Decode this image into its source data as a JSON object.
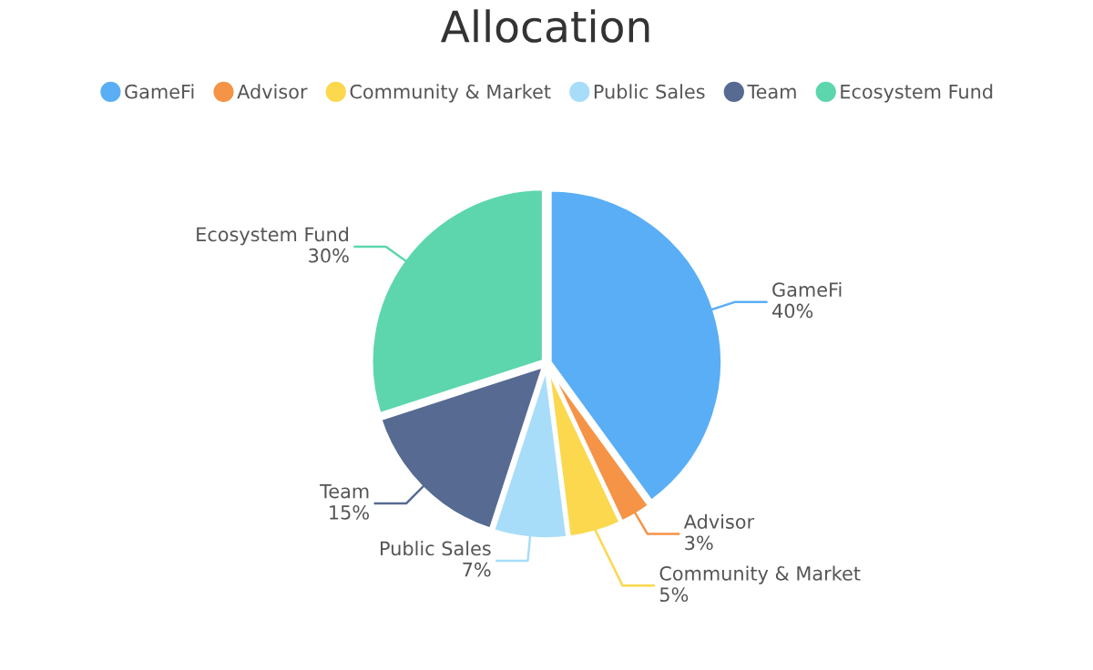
{
  "chart_data": {
    "type": "pie",
    "title": "Allocation",
    "categories": [
      "GameFi",
      "Advisor",
      "Community & Market",
      "Public Sales",
      "Team",
      "Ecosystem Fund"
    ],
    "values": [
      40,
      3,
      5,
      7,
      15,
      30
    ],
    "value_labels": [
      "40%",
      "3%",
      "5%",
      "7%",
      "15%",
      "30%"
    ],
    "colors": [
      "#5aaef5",
      "#f59346",
      "#fbd84d",
      "#a8ddf9",
      "#566a92",
      "#5dd6ad"
    ],
    "legend": "top"
  }
}
